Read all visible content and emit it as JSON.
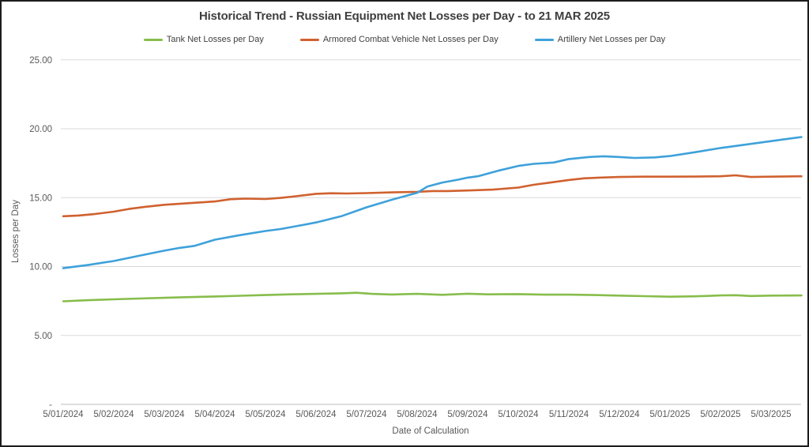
{
  "chart_data": {
    "type": "line",
    "title": "Historical Trend - Russian Equipment Net Losses per Day - to 21 MAR 2025",
    "xlabel": "Date of Calculation",
    "ylabel": "Losses per Day",
    "ylim": [
      0,
      25
    ],
    "grid": true,
    "legend_position": "top",
    "y_ticks": [
      25,
      20,
      15,
      10,
      5,
      0
    ],
    "y_tick_labels": [
      "25.00",
      "20.00",
      "15.00",
      "10.00",
      "5.00",
      "-"
    ],
    "x_tick_labels": [
      "5/01/2024",
      "5/02/2024",
      "5/03/2024",
      "5/04/2024",
      "5/05/2024",
      "5/06/2024",
      "5/07/2024",
      "5/08/2024",
      "5/09/2024",
      "5/10/2024",
      "5/11/2024",
      "5/12/2024",
      "5/01/2025",
      "5/02/2025",
      "5/03/2025"
    ],
    "x_note": "series x values are fractional positions along the monthly ticks above; data extends past the last tick to 21 MAR 2025",
    "series": [
      {
        "name": "Tank Net Losses per Day",
        "color": "#87BD4B",
        "points": [
          [
            0,
            7.48
          ],
          [
            0.5,
            7.56
          ],
          [
            1,
            7.62
          ],
          [
            1.5,
            7.68
          ],
          [
            2,
            7.73
          ],
          [
            2.5,
            7.78
          ],
          [
            3,
            7.83
          ],
          [
            3.5,
            7.88
          ],
          [
            4,
            7.93
          ],
          [
            4.5,
            7.98
          ],
          [
            5,
            8.02
          ],
          [
            5.5,
            8.06
          ],
          [
            5.8,
            8.1
          ],
          [
            6.1,
            8.02
          ],
          [
            6.5,
            7.97
          ],
          [
            7,
            8.02
          ],
          [
            7.5,
            7.95
          ],
          [
            8,
            8.03
          ],
          [
            8.4,
            7.98
          ],
          [
            9,
            8.0
          ],
          [
            9.5,
            7.96
          ],
          [
            10,
            7.96
          ],
          [
            10.5,
            7.93
          ],
          [
            11,
            7.89
          ],
          [
            11.5,
            7.85
          ],
          [
            12,
            7.81
          ],
          [
            12.5,
            7.84
          ],
          [
            13,
            7.9
          ],
          [
            13.3,
            7.92
          ],
          [
            13.6,
            7.86
          ],
          [
            14,
            7.89
          ],
          [
            14.6,
            7.9
          ]
        ]
      },
      {
        "name": "Armored Combat Vehicle Net Losses per Day",
        "color": "#D0612F",
        "points": [
          [
            0,
            13.65
          ],
          [
            0.3,
            13.7
          ],
          [
            0.6,
            13.8
          ],
          [
            1,
            13.98
          ],
          [
            1.3,
            14.18
          ],
          [
            1.6,
            14.32
          ],
          [
            2,
            14.48
          ],
          [
            2.5,
            14.6
          ],
          [
            3,
            14.72
          ],
          [
            3.3,
            14.88
          ],
          [
            3.6,
            14.93
          ],
          [
            4,
            14.9
          ],
          [
            4.3,
            14.98
          ],
          [
            4.6,
            15.1
          ],
          [
            5,
            15.28
          ],
          [
            5.3,
            15.32
          ],
          [
            5.6,
            15.3
          ],
          [
            6,
            15.33
          ],
          [
            6.5,
            15.38
          ],
          [
            7,
            15.42
          ],
          [
            7.3,
            15.48
          ],
          [
            7.6,
            15.48
          ],
          [
            8,
            15.52
          ],
          [
            8.5,
            15.58
          ],
          [
            9,
            15.73
          ],
          [
            9.3,
            15.93
          ],
          [
            9.6,
            16.08
          ],
          [
            10,
            16.28
          ],
          [
            10.3,
            16.4
          ],
          [
            10.6,
            16.45
          ],
          [
            11,
            16.5
          ],
          [
            11.5,
            16.52
          ],
          [
            12,
            16.52
          ],
          [
            12.5,
            16.53
          ],
          [
            13,
            16.55
          ],
          [
            13.3,
            16.62
          ],
          [
            13.6,
            16.5
          ],
          [
            14,
            16.52
          ],
          [
            14.6,
            16.55
          ]
        ]
      },
      {
        "name": "Artillery Net Losses per Day",
        "color": "#3EA1DA",
        "points": [
          [
            0,
            9.88
          ],
          [
            0.5,
            10.12
          ],
          [
            1,
            10.4
          ],
          [
            1.5,
            10.78
          ],
          [
            2,
            11.15
          ],
          [
            2.3,
            11.35
          ],
          [
            2.6,
            11.5
          ],
          [
            3,
            11.95
          ],
          [
            3.5,
            12.28
          ],
          [
            4,
            12.58
          ],
          [
            4.3,
            12.72
          ],
          [
            4.6,
            12.92
          ],
          [
            5,
            13.2
          ],
          [
            5.5,
            13.65
          ],
          [
            6,
            14.3
          ],
          [
            6.5,
            14.85
          ],
          [
            7,
            15.35
          ],
          [
            7.2,
            15.8
          ],
          [
            7.5,
            16.1
          ],
          [
            7.8,
            16.3
          ],
          [
            8,
            16.45
          ],
          [
            8.2,
            16.55
          ],
          [
            8.6,
            16.95
          ],
          [
            9,
            17.3
          ],
          [
            9.3,
            17.45
          ],
          [
            9.7,
            17.55
          ],
          [
            10,
            17.8
          ],
          [
            10.4,
            17.95
          ],
          [
            10.7,
            18.0
          ],
          [
            11,
            17.95
          ],
          [
            11.3,
            17.88
          ],
          [
            11.7,
            17.92
          ],
          [
            12,
            18.02
          ],
          [
            12.5,
            18.3
          ],
          [
            13,
            18.6
          ],
          [
            13.5,
            18.85
          ],
          [
            14,
            19.1
          ],
          [
            14.3,
            19.25
          ],
          [
            14.6,
            19.4
          ]
        ]
      }
    ],
    "colors": {
      "grid": "#d9d9d9",
      "axis_line": "#bfbfbf",
      "tick_text": "#595959",
      "title_text": "#3f3f3f"
    }
  }
}
